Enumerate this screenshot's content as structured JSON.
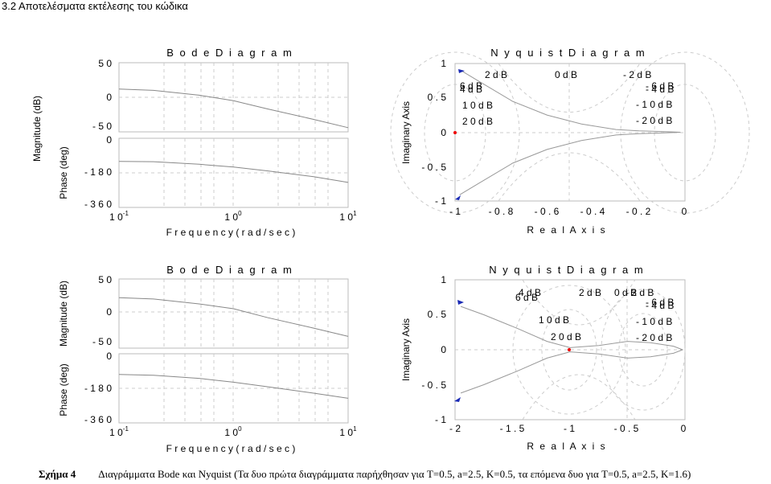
{
  "heading": "3.2 Αποτελέσματα εκτέλεσης του κώδικα",
  "caption": {
    "label": "Σχήμα 4",
    "text": "Διαγράμματα Bode και Nyquist (Τα δυο πρώτα διαγράμματα  παρήχθησαν για T=0.5,  a=2.5, K=0.5, τα επόμενα δυο για T=0.5,  a=2.5, K=1.6)"
  },
  "bode_common": {
    "title": "B o d e  D i a g r a m",
    "xlabel": "F r e q u e n c y   ( r a d / s e c )",
    "mag_ylabel": "Magnitude (dB)",
    "phase_ylabel": "Phase (deg)",
    "mag_ticks": [
      "5 0",
      "0",
      "- 5 0"
    ],
    "phase_ticks": [
      "0",
      "- 1 8 0",
      "- 3 6 0"
    ],
    "x_ticks": [
      {
        "base": "1 0",
        "exp": "-1"
      },
      {
        "base": "1 0",
        "exp": "0"
      },
      {
        "base": "1 0",
        "exp": "1"
      }
    ]
  },
  "nyquist_common": {
    "title": "N y q u i s t  D i a g r a m",
    "xlabel": "R e a l  A x i s",
    "ylabel": "Imaginary Axis",
    "y_ticks": [
      "1",
      "0 . 5",
      "0",
      "- 0 . 5",
      "- 1"
    ]
  },
  "nyquist1": {
    "x_ticks": [
      "- 1",
      "- 0 . 8",
      "- 0 . 6",
      "- 0 . 4",
      "- 0 . 2",
      "0"
    ],
    "labels": [
      "2  d B",
      "0  d B",
      "- 2  d B",
      "6  d B",
      "4  d B",
      "- 6  d B",
      "- 4  d B",
      "1 0  d B",
      "- 1 0  d B",
      "2 0  d B",
      "- 2 0  d B"
    ]
  },
  "nyquist2": {
    "x_ticks": [
      "- 2",
      "- 1 . 5",
      "- 1",
      "- 0 . 5",
      "0"
    ],
    "labels": [
      "4  d B",
      "6  d B",
      "2  d B",
      "0  d B",
      "- 2 d B",
      "- 6  d B",
      "- 4  d B",
      "1 0  d B",
      "- 1 0  d B",
      "2 0  d B",
      "- 2 0  d B"
    ]
  },
  "chart_data": [
    {
      "type": "line",
      "id": "bode1-magnitude",
      "x_scale": "log",
      "x": [
        0.1,
        0.2,
        0.5,
        1,
        2,
        5,
        10
      ],
      "y": [
        12,
        10,
        3,
        -5,
        -17,
        -32,
        -44
      ],
      "ylim": [
        -50,
        50
      ]
    },
    {
      "type": "line",
      "id": "bode1-phase",
      "x_scale": "log",
      "x": [
        0.1,
        0.2,
        0.5,
        1,
        2,
        5,
        10
      ],
      "y": [
        -120,
        -122,
        -135,
        -150,
        -170,
        -200,
        -230
      ],
      "ylim": [
        -360,
        0
      ]
    },
    {
      "type": "line",
      "id": "nyquist1",
      "x": [
        -0.98,
        -0.9,
        -0.75,
        -0.6,
        -0.45,
        -0.3,
        -0.2,
        -0.1,
        -0.05,
        -0.02
      ],
      "y": [
        0.91,
        0.75,
        0.45,
        0.25,
        0.12,
        0.04,
        0.02,
        0.01,
        0.005,
        0.0
      ],
      "xlim": [
        -1,
        0
      ],
      "ylim": [
        -1,
        1
      ]
    },
    {
      "type": "line",
      "id": "bode2-magnitude",
      "x_scale": "log",
      "x": [
        0.1,
        0.2,
        0.5,
        1,
        2,
        5,
        10
      ],
      "y": [
        23,
        21,
        14,
        7,
        -6,
        -21,
        -33
      ],
      "ylim": [
        -50,
        50
      ]
    },
    {
      "type": "line",
      "id": "bode2-phase",
      "x_scale": "log",
      "x": [
        0.1,
        0.2,
        0.5,
        1,
        2,
        5,
        10
      ],
      "y": [
        -108,
        -112,
        -128,
        -148,
        -172,
        -205,
        -232
      ],
      "ylim": [
        -360,
        0
      ]
    },
    {
      "type": "line",
      "id": "nyquist2",
      "x": [
        -1.95,
        -1.75,
        -1.45,
        -1.2,
        -1.0,
        -0.75,
        -0.5,
        -0.3,
        -0.1,
        -0.02
      ],
      "y": [
        0.62,
        0.5,
        0.3,
        0.12,
        0.03,
        0.06,
        0.12,
        0.1,
        0.05,
        0.0
      ],
      "xlim": [
        -2,
        0
      ],
      "ylim": [
        -1,
        1
      ]
    }
  ]
}
